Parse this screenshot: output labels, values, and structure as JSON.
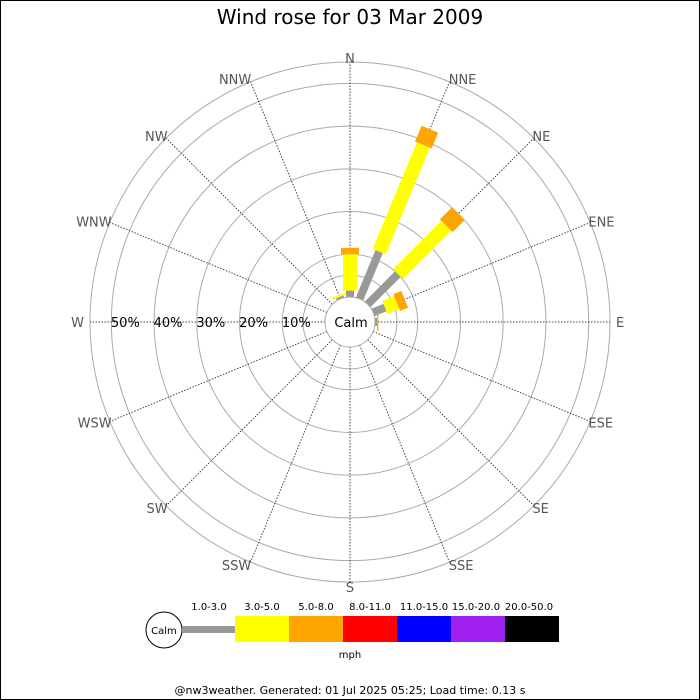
{
  "chart_data": {
    "type": "wind-rose",
    "title": "Wind rose for 03 Mar 2009",
    "directions": [
      "N",
      "NNE",
      "NE",
      "ENE",
      "E",
      "ESE",
      "SE",
      "SSE",
      "S",
      "SSW",
      "SW",
      "WSW",
      "W",
      "WNW",
      "NW",
      "NNW"
    ],
    "radial_ticks": [
      "10%",
      "20%",
      "30%",
      "40%",
      "50%"
    ],
    "radial_max": 55,
    "calm_label": "Calm",
    "speed_bins": [
      {
        "label": "1.0-3.0",
        "color": "#999999"
      },
      {
        "label": "3.0-5.0",
        "color": "#ffff00"
      },
      {
        "label": "5.0-8.0",
        "color": "#ffa500"
      },
      {
        "label": "8.0-11.0",
        "color": "#ff0000"
      },
      {
        "label": "11.0-15.0",
        "color": "#0000ff"
      },
      {
        "label": "15.0-20.0",
        "color": "#a020f0"
      },
      {
        "label": "20.0-50.0",
        "color": "#000000"
      }
    ],
    "unit": "mph",
    "series": [
      {
        "direction": "N",
        "values": [
          1.5,
          8.5,
          1.5
        ]
      },
      {
        "direction": "NNE",
        "values": [
          12.0,
          27.0,
          4.0
        ]
      },
      {
        "direction": "NE",
        "values": [
          10.0,
          16.0,
          4.0
        ]
      },
      {
        "direction": "ENE",
        "values": [
          3.0,
          3.0,
          2.0
        ]
      },
      {
        "direction": "E",
        "values": [
          0.5,
          0.0,
          0.3
        ]
      },
      {
        "direction": "NNW",
        "values": [
          0.5,
          0.5,
          0.0
        ]
      }
    ]
  },
  "footer": "@nw3weather. Generated: 01 Jul 2025 05:25; Load time: 0.13 s"
}
